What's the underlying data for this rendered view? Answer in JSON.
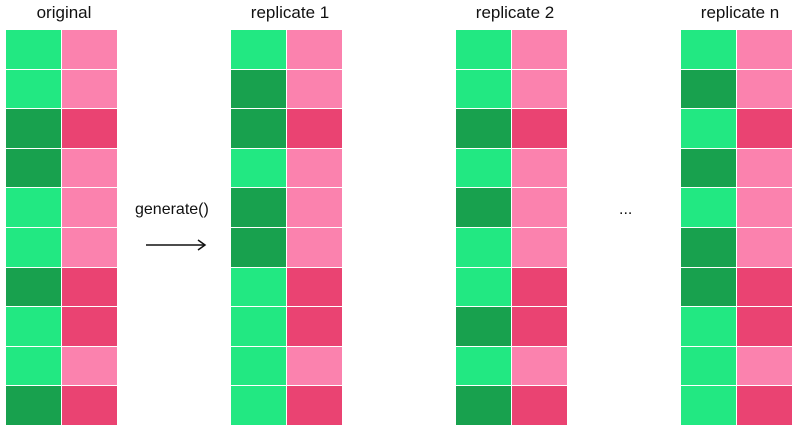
{
  "colors": {
    "green_light": "#22e882",
    "green_dark": "#18a14e",
    "pink_light": "#fb82ae",
    "pink_dark": "#ea4372"
  },
  "generate_label": "generate()",
  "ellipsis": "...",
  "tables": [
    {
      "title": "original",
      "col1": [
        "light",
        "light",
        "dark",
        "dark",
        "light",
        "light",
        "dark",
        "light",
        "light",
        "dark"
      ],
      "col2": [
        "light",
        "light",
        "dark",
        "light",
        "light",
        "light",
        "dark",
        "dark",
        "light",
        "dark"
      ]
    },
    {
      "title": "replicate 1",
      "col1": [
        "light",
        "dark",
        "dark",
        "light",
        "dark",
        "dark",
        "light",
        "light",
        "light",
        "light"
      ],
      "col2": [
        "light",
        "light",
        "dark",
        "light",
        "light",
        "light",
        "dark",
        "dark",
        "light",
        "dark"
      ]
    },
    {
      "title": "replicate 2",
      "col1": [
        "light",
        "light",
        "dark",
        "light",
        "dark",
        "light",
        "light",
        "dark",
        "light",
        "dark"
      ],
      "col2": [
        "light",
        "light",
        "dark",
        "light",
        "light",
        "light",
        "dark",
        "dark",
        "light",
        "dark"
      ]
    },
    {
      "title": "replicate n",
      "col1": [
        "light",
        "dark",
        "light",
        "dark",
        "light",
        "dark",
        "dark",
        "light",
        "light",
        "light"
      ],
      "col2": [
        "light",
        "light",
        "dark",
        "light",
        "light",
        "light",
        "dark",
        "dark",
        "light",
        "dark"
      ]
    }
  ]
}
